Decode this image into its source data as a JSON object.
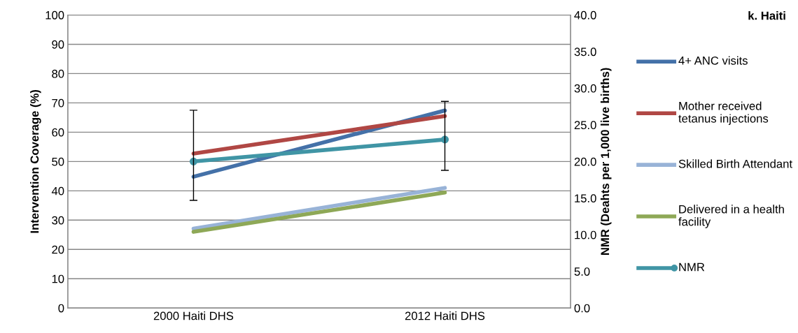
{
  "chart_data": {
    "type": "line",
    "title": "k. Haiti",
    "ylabel": "Intervention Coverage (%)",
    "y2label": "NMR (Deahts per 1,000 live births)",
    "categories": [
      "2000 Haiti DHS",
      "2012 Haiti DHS"
    ],
    "series": [
      {
        "name": "4+ ANC visits",
        "color": "#4471a8",
        "values": [
          44.8,
          67.4
        ]
      },
      {
        "name": "Mother received tetanus injections",
        "color": "#b04744",
        "values": [
          52.7,
          65.5
        ]
      },
      {
        "name": "Skilled Birth Attendant",
        "color": "#98b3d7",
        "values": [
          27.1,
          41.0
        ]
      },
      {
        "name": "Delivered in a health facility",
        "color": "#8ea857",
        "values": [
          26.0,
          39.4
        ]
      },
      {
        "name": "NMR",
        "color": "#4095a5",
        "axis": "y2",
        "marker": "circle",
        "values": [
          20.0,
          23.0
        ],
        "errors": [
          [
            14.7,
            27.0
          ],
          [
            18.8,
            28.2
          ]
        ]
      }
    ],
    "ylim": [
      0,
      100
    ],
    "yticks": [
      0,
      10,
      20,
      30,
      40,
      50,
      60,
      70,
      80,
      90,
      100
    ],
    "y2lim": [
      0,
      40
    ],
    "y2ticks": [
      {
        "value": 0,
        "label": "0.0"
      },
      {
        "value": 5,
        "label": "5.0"
      },
      {
        "value": 10,
        "label": "10.0"
      },
      {
        "value": 15,
        "label": "15.0"
      },
      {
        "value": 20,
        "label": "20.0"
      },
      {
        "value": 25,
        "label": "25.0"
      },
      {
        "value": 30,
        "label": "30.0"
      },
      {
        "value": 35,
        "label": "35.0"
      },
      {
        "value": 40,
        "label": "40.0"
      }
    ],
    "grid": "y",
    "legend": "right",
    "marker": "none",
    "line_style": "solid"
  }
}
